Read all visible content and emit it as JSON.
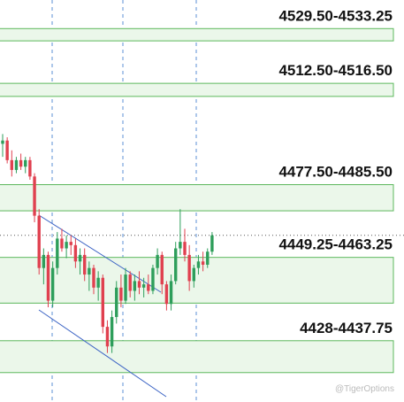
{
  "chart_data": {
    "type": "candlestick",
    "ylim": [
      4419,
      4542
    ],
    "up_color": "#2e9e5b",
    "down_color": "#e0404f",
    "zone_fill": "#ebf7ea",
    "zone_stroke": "#5cb85c",
    "zones": [
      {
        "label": "4529.50-4533.25",
        "low": 4529.5,
        "high": 4533.25
      },
      {
        "label": "4512.50-4516.50",
        "low": 4512.5,
        "high": 4516.5
      },
      {
        "label": "4477.50-4485.50",
        "low": 4477.5,
        "high": 4485.5
      },
      {
        "label": "4449.25-4463.25",
        "low": 4449.25,
        "high": 4463.25
      },
      {
        "label": "4428-4437.75",
        "low": 4428,
        "high": 4437.75
      }
    ],
    "candles": [
      [
        4498,
        4501,
        4494,
        4499
      ],
      [
        4499,
        4500,
        4492,
        4493
      ],
      [
        4493,
        4496,
        4488,
        4490
      ],
      [
        4490,
        4494,
        4489,
        4493
      ],
      [
        4493,
        4495,
        4490,
        4491
      ],
      [
        4491,
        4494,
        4489,
        4493
      ],
      [
        4493,
        4494,
        4487,
        4488
      ],
      [
        4488,
        4489,
        4474,
        4476
      ],
      [
        4476,
        4478,
        4458,
        4460
      ],
      [
        4460,
        4466,
        4455,
        4464
      ],
      [
        4464,
        4465,
        4448,
        4450
      ],
      [
        4450,
        4462,
        4448,
        4460
      ],
      [
        4460,
        4471,
        4458,
        4469
      ],
      [
        4469,
        4472,
        4465,
        4466
      ],
      [
        4466,
        4470,
        4463,
        4468
      ],
      [
        4468,
        4470,
        4464,
        4467
      ],
      [
        4467,
        4469,
        4460,
        4462
      ],
      [
        4462,
        4466,
        4458,
        4464
      ],
      [
        4464,
        4466,
        4456,
        4458
      ],
      [
        4458,
        4462,
        4453,
        4460
      ],
      [
        4460,
        4461,
        4452,
        4454
      ],
      [
        4454,
        4459,
        4450,
        4457
      ],
      [
        4457,
        4458,
        4440,
        4442
      ],
      [
        4442,
        4444,
        4434,
        4436
      ],
      [
        4436,
        4447,
        4434,
        4445
      ],
      [
        4445,
        4456,
        4443,
        4454
      ],
      [
        4454,
        4458,
        4448,
        4450
      ],
      [
        4450,
        4460,
        4449,
        4458
      ],
      [
        4458,
        4459,
        4451,
        4453
      ],
      [
        4453,
        4458,
        4450,
        4456
      ],
      [
        4456,
        4459,
        4452,
        4454
      ],
      [
        4454,
        4457,
        4451,
        4455
      ],
      [
        4455,
        4458,
        4452,
        4453
      ],
      [
        4453,
        4461,
        4452,
        4460
      ],
      [
        4460,
        4466,
        4458,
        4464
      ],
      [
        4464,
        4465,
        4452,
        4455
      ],
      [
        4455,
        4456,
        4447,
        4449
      ],
      [
        4449,
        4458,
        4447,
        4456
      ],
      [
        4456,
        4468,
        4455,
        4466
      ],
      [
        4466,
        4478,
        4464,
        4468
      ],
      [
        4468,
        4472,
        4462,
        4464
      ],
      [
        4464,
        4467,
        4453,
        4456
      ],
      [
        4456,
        4461,
        4454,
        4460
      ],
      [
        4460,
        4464,
        4458,
        4462
      ],
      [
        4462,
        4465,
        4459,
        4461
      ],
      [
        4461,
        4466,
        4460,
        4465
      ],
      [
        4465,
        4471,
        4464,
        4470
      ]
    ],
    "watermark": "@TigerOptions"
  }
}
